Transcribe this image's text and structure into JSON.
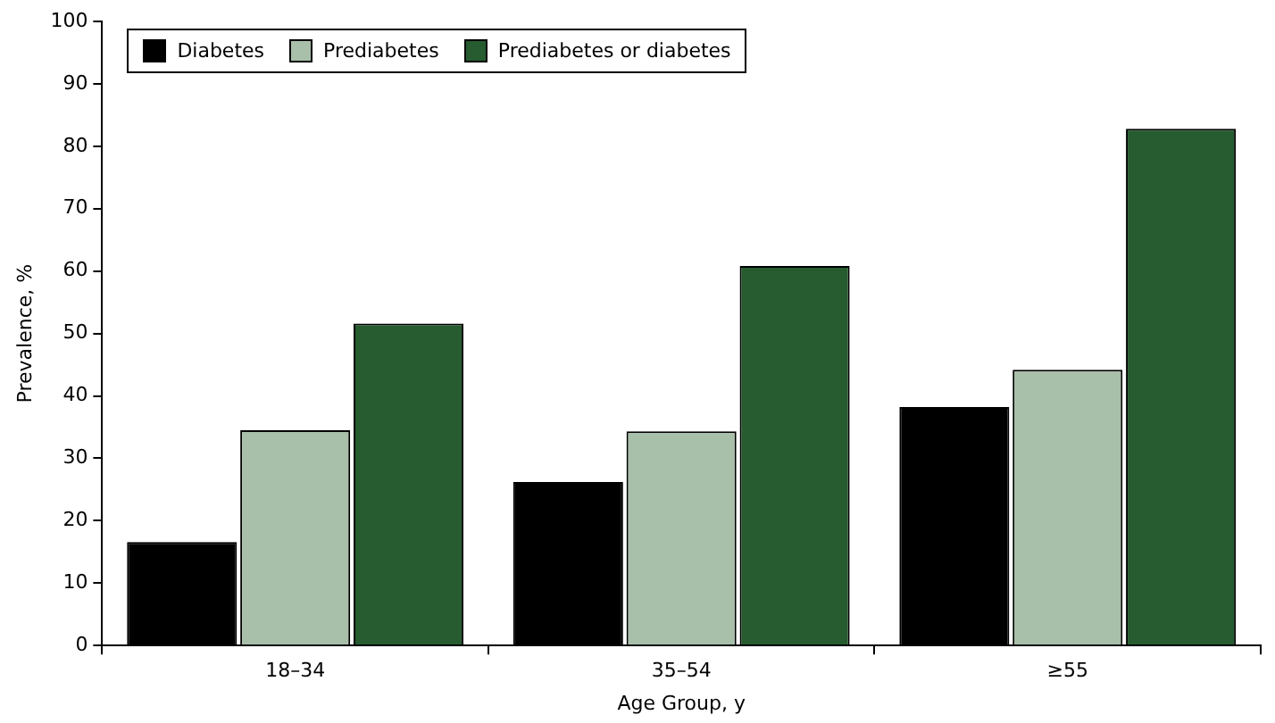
{
  "chart_data": {
    "type": "bar",
    "xlabel": "Age Group, y",
    "ylabel": "Prevalence, %",
    "categories": [
      "18–34",
      "35–54",
      "≥55"
    ],
    "series": [
      {
        "name": "Diabetes",
        "color": "#000000",
        "values": [
          16.6,
          26.2,
          38.2
        ]
      },
      {
        "name": "Prediabetes",
        "color": "#a8bfaa",
        "values": [
          34.5,
          34.3,
          44.2
        ]
      },
      {
        "name": "Prediabetes or diabetes",
        "color": "#265c30",
        "values": [
          51.6,
          60.8,
          82.8
        ]
      }
    ],
    "ylim": [
      0,
      100
    ],
    "yticks": [
      0,
      10,
      20,
      30,
      40,
      50,
      60,
      70,
      80,
      90,
      100
    ],
    "grid": false,
    "legend": "top left"
  }
}
